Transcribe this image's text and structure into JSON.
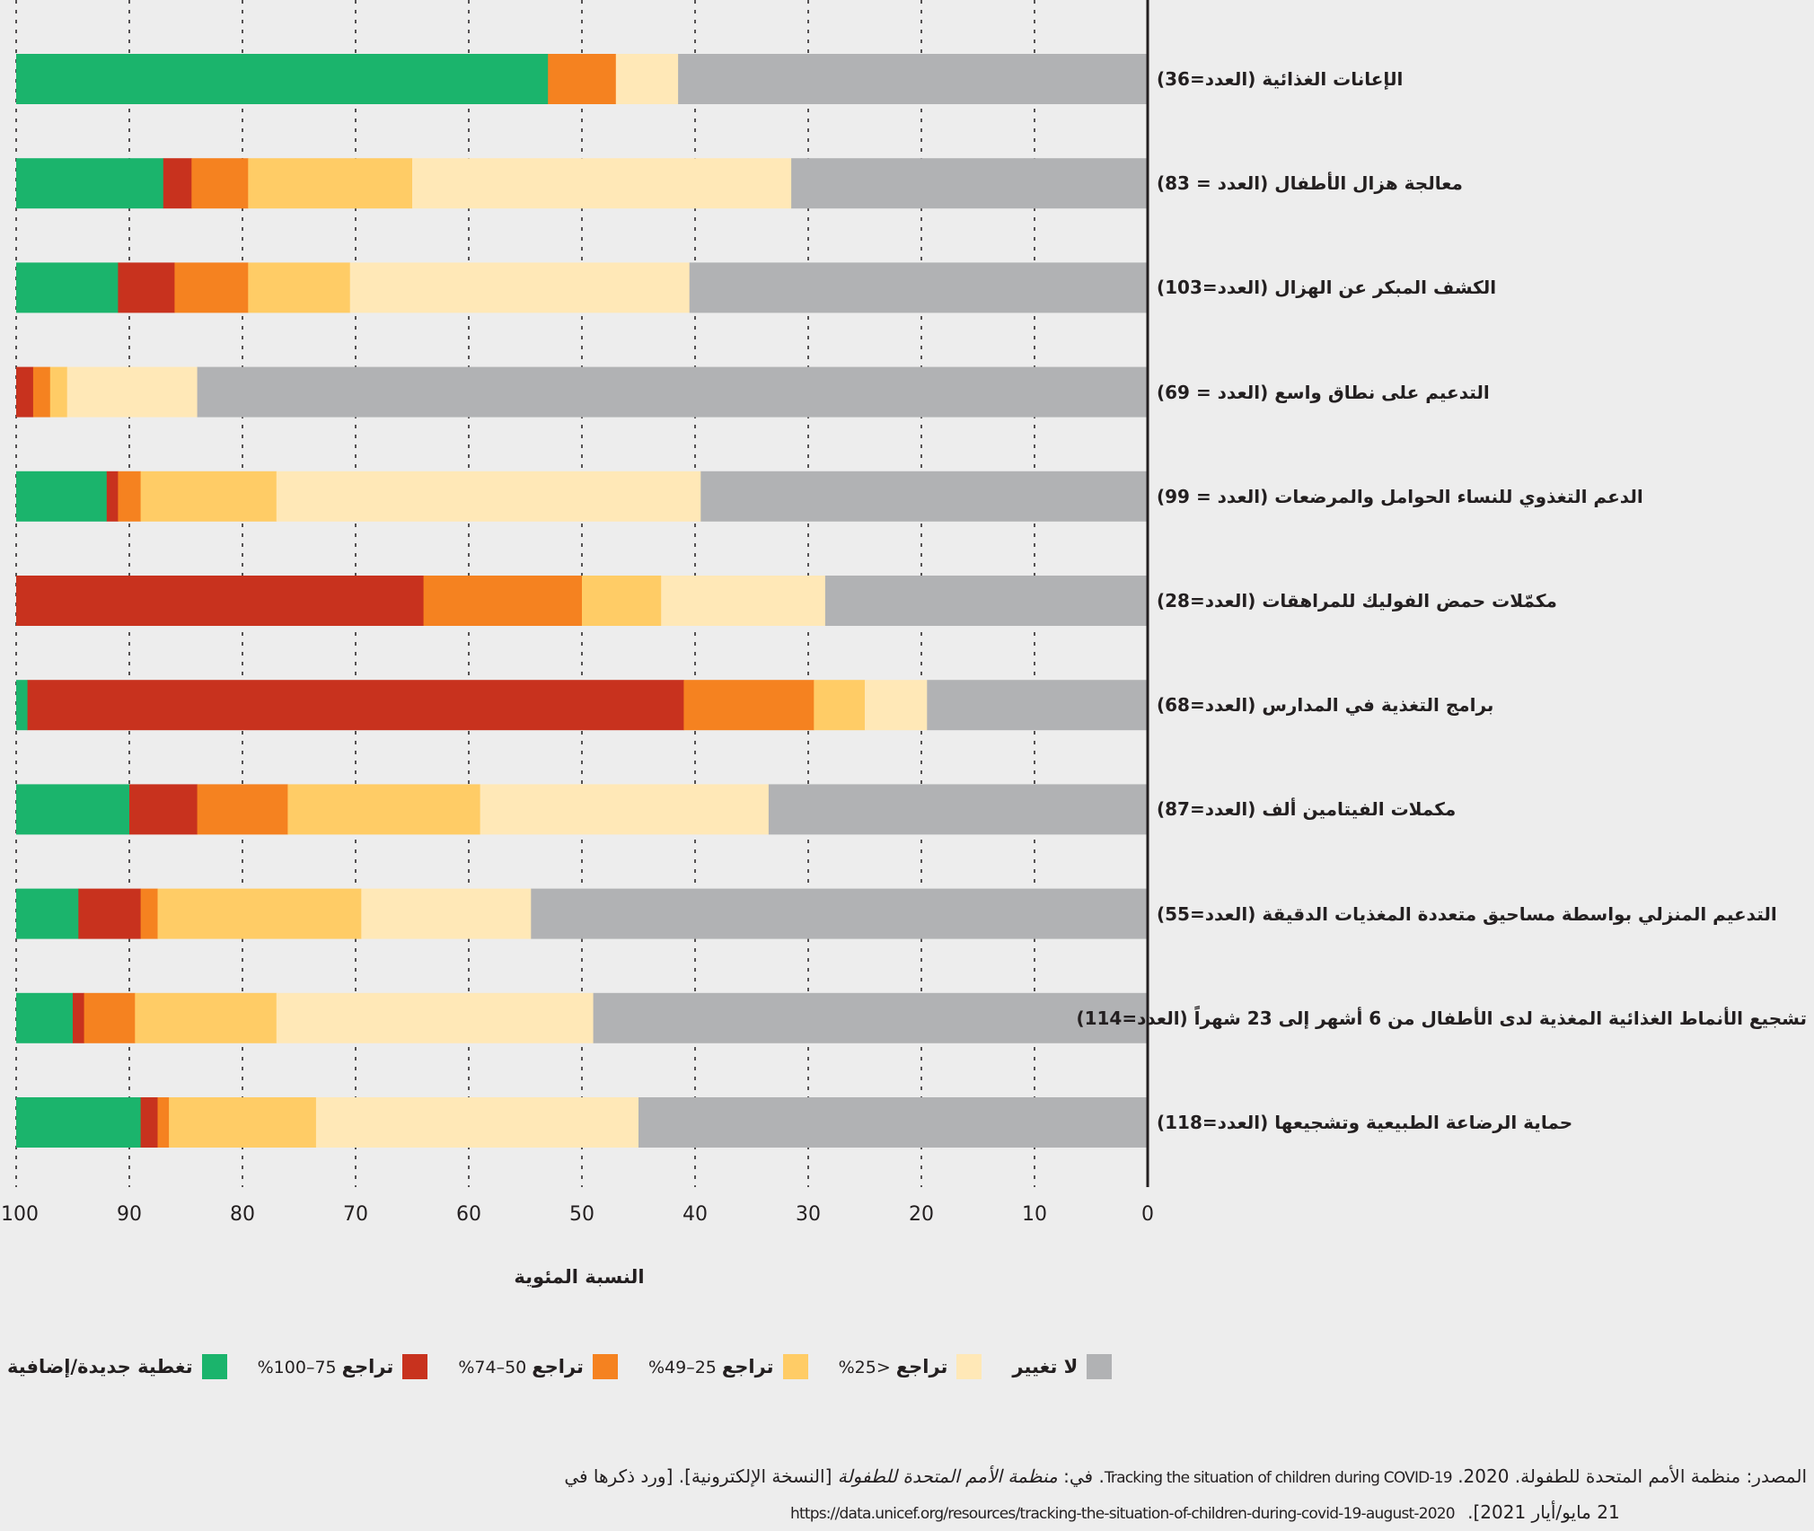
{
  "chart_data": {
    "type": "bar",
    "orientation": "horizontal-stacked",
    "xlabel": "النسبة المئوية",
    "ylabel": "",
    "xlim": [
      0,
      100
    ],
    "x_direction": "reversed (100 on left, 0 on right)",
    "xticks": [
      "100",
      "90",
      "80",
      "70",
      "60",
      "50",
      "40",
      "30",
      "20",
      "10",
      "0"
    ],
    "grid": "vertical dotted",
    "legend_position": "bottom",
    "categories": [
      "الإعانات الغذائية (العدد=36)",
      "معالجة هزال الأطفال (العدد = 83)",
      "الكشف المبكر عن الهزال (العدد=103)",
      "التدعيم على نطاق واسع (العدد = 69)",
      "الدعم التغذوي للنساء الحوامل والمرضعات (العدد = 99)",
      "مكمّلات حمض الفوليك للمراهقات (العدد=28)",
      "برامج التغذية في المدارس (العدد=68)",
      "مكملات الفيتامين ألف (العدد=87)",
      "التدعيم المنزلي بواسطة مساحيق متعددة المغذيات الدقيقة (العدد=55)",
      "تشجيع الأنماط الغذائية المغذية لدى الأطفال من 6 أشهر إلى 23 شهراً (العدد=114)",
      "حماية الرضاعة الطبيعية وتشجيعها (العدد=118)"
    ],
    "series": [
      {
        "name": "تغطية جديدة/إضافية",
        "color": "#1bb46c",
        "values": [
          47,
          13,
          9,
          0,
          8,
          0,
          1,
          10,
          5.5,
          5,
          11
        ]
      },
      {
        "name": "تراجع 75–100%",
        "color": "#c8321e",
        "values": [
          0,
          2.5,
          5,
          1.5,
          1,
          36,
          58,
          6,
          5.5,
          1,
          1.5
        ]
      },
      {
        "name": "تراجع 50–74%",
        "color": "#f58220",
        "values": [
          6,
          5,
          6.5,
          1.5,
          2,
          14,
          11.5,
          8,
          1.5,
          4.5,
          1
        ]
      },
      {
        "name": "تراجع 25–49%",
        "color": "#ffcc66",
        "values": [
          0,
          14.5,
          9,
          1.5,
          12,
          7,
          4.5,
          17,
          18,
          12.5,
          13
        ]
      },
      {
        "name": "تراجع <25%",
        "color": "#ffe8b7",
        "values": [
          5.5,
          33.5,
          30,
          11.5,
          37.5,
          14.5,
          5.5,
          25.5,
          15,
          28,
          28.5
        ]
      },
      {
        "name": "لا تغيير",
        "color": "#b1b2b4",
        "values": [
          41.5,
          31.5,
          40.5,
          84,
          39.5,
          28.5,
          19.5,
          33.5,
          54.5,
          49,
          45
        ]
      }
    ]
  },
  "legend": [
    {
      "name": "تغطية جديدة/إضافية",
      "label": "تغطية جديدة/إضافية",
      "range": ""
    },
    {
      "name": "تراجع 75–100%",
      "label": "تراجع",
      "range": "75–100%"
    },
    {
      "name": "تراجع 50–74%",
      "label": "تراجع",
      "range": "50–74%"
    },
    {
      "name": "تراجع 25–49%",
      "label": "تراجع",
      "range": "25–49%"
    },
    {
      "name": "تراجع <25%",
      "label": "تراجع",
      "range": "<25%"
    },
    {
      "name": "لا تغيير",
      "label": "لا تغيير",
      "range": ""
    }
  ],
  "footer": {
    "prefix": "المصدر: منظمة الأمم المتحدة للطفولة. 2020.",
    "title_en": "Tracking the situation of children during COVID-19",
    "in_label": ". في:",
    "publisher_italic": "منظمة الأمم المتحدة للطفولة",
    "edition": "[النسخة الإلكترونية]. [ورد ذكرها في",
    "date": "21 مايو/أيار 2021].",
    "url": "https://data.unicef.org/resources/tracking-the-situation-of-children-during-covid-19-august-2020"
  }
}
